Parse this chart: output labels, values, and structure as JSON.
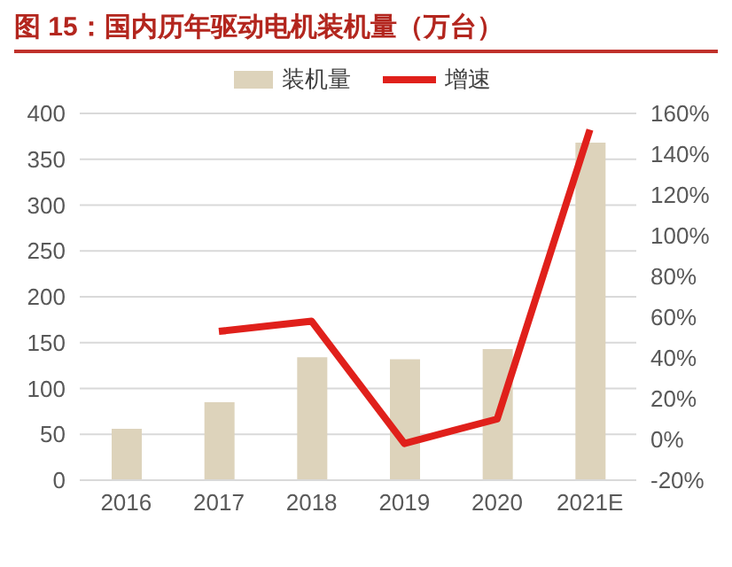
{
  "chart_data": {
    "type": "bar",
    "title": "图 15：国内历年驱动电机装机量（万台）",
    "categories": [
      "2016",
      "2017",
      "2018",
      "2019",
      "2020",
      "2021E"
    ],
    "series": [
      {
        "name": "装机量",
        "color": "#ddd3bb",
        "values": [
          56,
          85,
          134,
          132,
          143,
          368
        ]
      },
      {
        "name": "增速",
        "type": "line",
        "axis": "y2",
        "color": "#e0201b",
        "values": [
          null,
          53,
          58,
          -2,
          10,
          152
        ]
      }
    ],
    "ylim": [
      0,
      400
    ],
    "yticks": [
      0,
      50,
      100,
      150,
      200,
      250,
      300,
      350,
      400
    ],
    "y2lim": [
      -20,
      160
    ],
    "y2ticks": [
      {
        "value": -20,
        "label": "-20%"
      },
      {
        "value": 0,
        "label": "0%"
      },
      {
        "value": 20,
        "label": "20%"
      },
      {
        "value": 40,
        "label": "40%"
      },
      {
        "value": 60,
        "label": "60%"
      },
      {
        "value": 80,
        "label": "80%"
      },
      {
        "value": 100,
        "label": "100%"
      },
      {
        "value": 120,
        "label": "120%"
      },
      {
        "value": 140,
        "label": "140%"
      },
      {
        "value": 160,
        "label": "160%"
      }
    ],
    "grid": "y",
    "legend": "top",
    "marker": "none"
  }
}
